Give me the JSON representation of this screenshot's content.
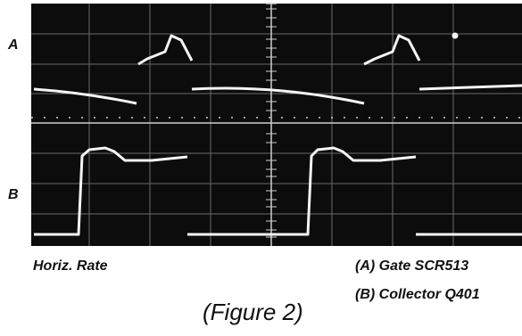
{
  "traces": {
    "a": "A",
    "b": "B"
  },
  "caption": {
    "left": "Horiz. Rate",
    "legend": [
      "(A) Gate SCR513",
      "(B) Collector Q401"
    ],
    "figure": "(Figure 2)"
  }
}
